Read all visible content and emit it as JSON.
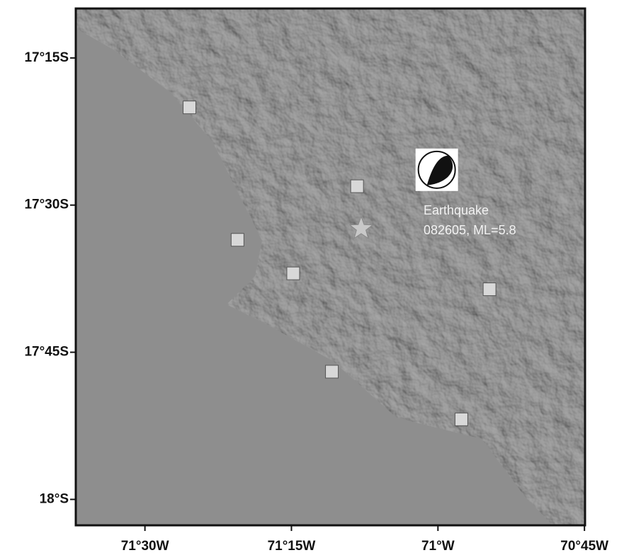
{
  "map": {
    "xlim": [
      -71.618,
      -70.749
    ],
    "ylim": [
      -17.166,
      -18.044
    ],
    "xticks": [
      {
        "value": -71.5,
        "label": "71°30W"
      },
      {
        "value": -71.25,
        "label": "71°15W"
      },
      {
        "value": -71.0,
        "label": "71°W"
      },
      {
        "value": -70.75,
        "label": "70°45W"
      }
    ],
    "yticks": [
      {
        "value": -17.25,
        "label": "17°15S"
      },
      {
        "value": -17.5,
        "label": "17°30S"
      },
      {
        "value": -17.75,
        "label": "17°45S"
      },
      {
        "value": -18.0,
        "label": "18°S"
      }
    ],
    "stations": [
      {
        "lon": -71.424,
        "lat": -17.334
      },
      {
        "lon": -71.138,
        "lat": -17.468
      },
      {
        "lon": -71.342,
        "lat": -17.559
      },
      {
        "lon": -71.247,
        "lat": -17.616
      },
      {
        "lon": -70.912,
        "lat": -17.643
      },
      {
        "lon": -71.181,
        "lat": -17.783
      },
      {
        "lon": -70.96,
        "lat": -17.864
      }
    ],
    "epicenter": {
      "lon": -71.131,
      "lat": -17.54
    },
    "mechanism": {
      "lon": -71.002,
      "lat": -17.44
    },
    "annotation": [
      "Earthquake",
      "082605, ML=5.8"
    ]
  }
}
